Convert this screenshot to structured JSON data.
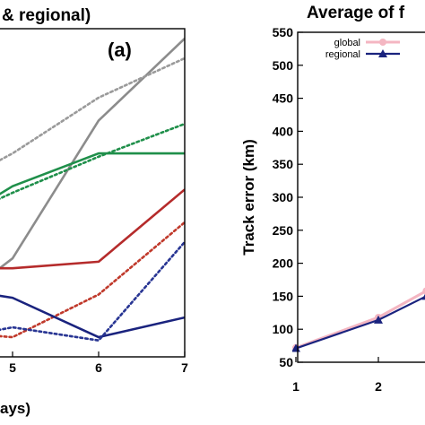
{
  "chart_data": [
    {
      "type": "line",
      "title": "& regional)",
      "panel_label": "(a)",
      "xlabel": "ays)",
      "ylabel": "",
      "xlim": [
        4.0,
        7.0
      ],
      "ylim": [
        0,
        100
      ],
      "x_ticks": [
        5,
        6,
        7
      ],
      "grid": false,
      "series": [
        {
          "color": "#8c8c8c",
          "style": "solid",
          "x": [
            4.0,
            5.0,
            6.0,
            7.0
          ],
          "y": [
            10,
            30,
            72,
            97
          ]
        },
        {
          "color": "#9a9a9a",
          "style": "dotted",
          "x": [
            4.0,
            5.0,
            6.0,
            7.0
          ],
          "y": [
            48,
            62,
            79,
            91
          ]
        },
        {
          "color": "#1f8f4a",
          "style": "dotted",
          "x": [
            4.0,
            5.0,
            6.0,
            7.0
          ],
          "y": [
            38,
            50,
            61,
            71
          ]
        },
        {
          "color": "#1f8f4a",
          "style": "solid",
          "x": [
            4.0,
            5.0,
            6.0,
            7.0
          ],
          "y": [
            36,
            52,
            62,
            62
          ]
        },
        {
          "color": "#b52b2b",
          "style": "solid",
          "x": [
            4.0,
            5.0,
            6.0,
            7.0
          ],
          "y": [
            27,
            27,
            29,
            51
          ]
        },
        {
          "color": "#c0392b",
          "style": "dotted",
          "x": [
            4.0,
            5.0,
            6.0,
            7.0
          ],
          "y": [
            8,
            6,
            19,
            41
          ]
        },
        {
          "color": "#1a237e",
          "style": "solid",
          "x": [
            4.0,
            5.0,
            6.0,
            7.0
          ],
          "y": [
            22,
            18,
            6,
            12
          ]
        },
        {
          "color": "#283593",
          "style": "dotted",
          "x": [
            4.0,
            5.0,
            6.0,
            7.0
          ],
          "y": [
            4,
            9,
            5,
            35
          ]
        }
      ]
    },
    {
      "type": "line",
      "title": "Average of f",
      "xlabel": "",
      "ylabel": "Track error  (km)",
      "xlim": [
        1,
        3
      ],
      "ylim": [
        50,
        550
      ],
      "y_ticks": [
        50,
        100,
        150,
        200,
        250,
        300,
        350,
        400,
        450,
        500,
        550
      ],
      "x_ticks": [
        1,
        2
      ],
      "grid": false,
      "legend_position": "top-left",
      "series": [
        {
          "name": "global",
          "color": "#f4b6c2",
          "marker": "circle",
          "x": [
            1,
            2,
            2.58
          ],
          "y": [
            72,
            118,
            158
          ]
        },
        {
          "name": "regional",
          "color": "#1a237e",
          "marker": "triangle",
          "x": [
            1,
            2,
            2.58
          ],
          "y": [
            71,
            114,
            150
          ]
        }
      ]
    }
  ]
}
